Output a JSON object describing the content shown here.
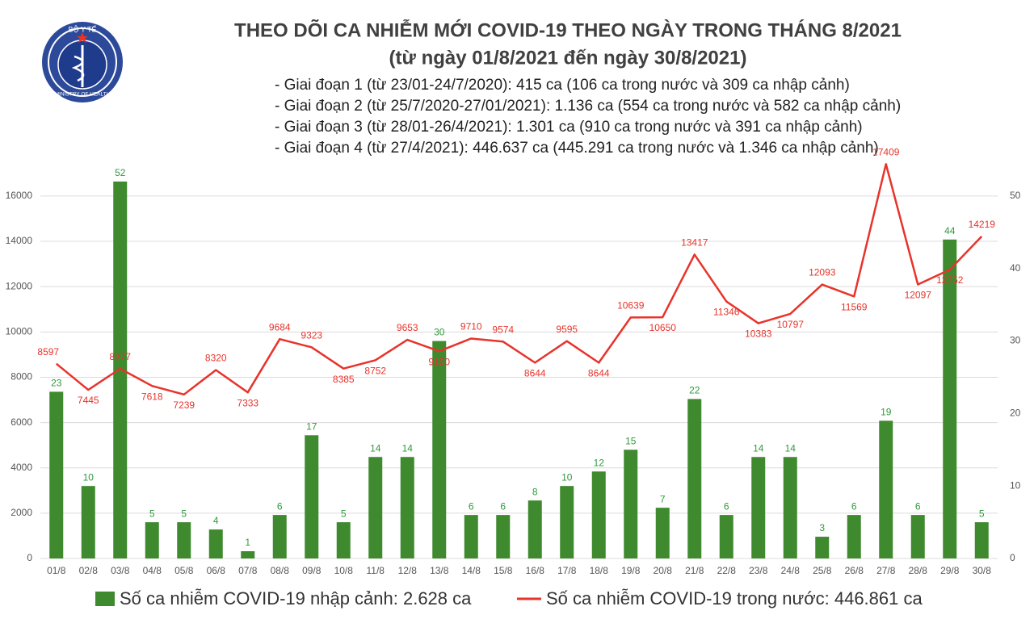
{
  "logo": {
    "top": "BỘ Y TẾ",
    "bottom": "MINISTRY OF HEALTH"
  },
  "chart_data": {
    "type": "combo",
    "title": "THEO DÕI CA NHIỄM MỚI COVID-19 THEO NGÀY TRONG THÁNG 8/2021",
    "subtitle": "(từ ngày 01/8/2021 đến ngày 30/8/2021)",
    "annotations": [
      "- Giai đoạn 1 (từ 23/01-24/7/2020): 415 ca (106 ca trong nước và 309 ca nhập cảnh)",
      "- Giai đoạn 2 (từ 25/7/2020-27/01/2021): 1.136 ca (554 ca trong nước và 582 ca nhập cảnh)",
      "- Giai đoạn 3 (từ 28/01-26/4/2021): 1.301 ca (910 ca trong nước và 391 ca nhập cảnh)",
      "- Giai đoạn 4 (từ 27/4/2021): 446.637 ca (445.291 ca trong nước và 1.346 ca nhập cảnh)"
    ],
    "categories": [
      "01/8",
      "02/8",
      "03/8",
      "04/8",
      "05/8",
      "06/8",
      "07/8",
      "08/8",
      "09/8",
      "10/8",
      "11/8",
      "12/8",
      "13/8",
      "14/8",
      "15/8",
      "16/8",
      "17/8",
      "18/8",
      "19/8",
      "20/8",
      "21/8",
      "22/8",
      "23/8",
      "24/8",
      "25/8",
      "26/8",
      "27/8",
      "28/8",
      "29/8",
      "30/8"
    ],
    "series": [
      {
        "name": "Số ca nhiễm COVID-19 nhập cảnh: 2.628 ca",
        "type": "bar",
        "axis": "y2",
        "color": "#3f8a2f",
        "label_color": "#2f9a3c",
        "values": [
          23,
          10,
          52,
          5,
          5,
          4,
          1,
          6,
          17,
          5,
          14,
          14,
          30,
          6,
          6,
          8,
          10,
          12,
          15,
          7,
          22,
          6,
          14,
          14,
          3,
          6,
          19,
          6,
          44,
          5
        ]
      },
      {
        "name": "Số ca nhiễm COVID-19 trong nước: 446.861 ca",
        "type": "line",
        "axis": "y",
        "color": "#e8332b",
        "values": [
          8597,
          7445,
          8377,
          7618,
          7239,
          8320,
          7333,
          9684,
          9323,
          8385,
          8752,
          9653,
          9150,
          9710,
          9574,
          8644,
          9595,
          8644,
          10639,
          10650,
          13417,
          11346,
          10383,
          10797,
          12093,
          11569,
          17409,
          12097,
          12752,
          14219
        ]
      }
    ],
    "ylim": [
      0,
      17600
    ],
    "yticks": [
      0,
      2000,
      4000,
      6000,
      8000,
      10000,
      12000,
      14000,
      16000
    ],
    "y2lim": [
      0,
      55
    ],
    "y2ticks": [
      0,
      10,
      20,
      30,
      40,
      50
    ],
    "grid": true
  }
}
